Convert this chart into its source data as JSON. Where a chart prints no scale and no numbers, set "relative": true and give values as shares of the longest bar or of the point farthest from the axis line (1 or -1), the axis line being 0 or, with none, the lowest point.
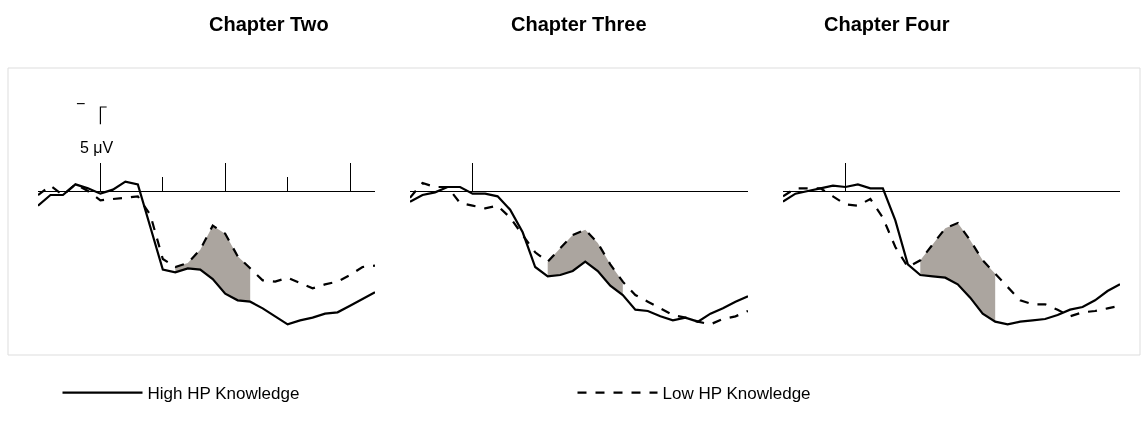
{
  "chart_data": [
    {
      "type": "line",
      "title": "Chapter Two",
      "relative": true,
      "legend": "bottom",
      "annotations": [
        "−",
        "5 μV"
      ],
      "categories": [
        null,
        null,
        null,
        null,
        null,
        null,
        null,
        null,
        null,
        null,
        null,
        null,
        null,
        null,
        null,
        null,
        null,
        null,
        null,
        null,
        null,
        null,
        null,
        null,
        null,
        null,
        null,
        null
      ],
      "series": [
        {
          "name": "High HP Knowledge",
          "color": "#000000",
          "line_style": "solid",
          "values": [
            -0.11,
            -0.03,
            -0.03,
            0.05,
            0.02,
            -0.02,
            0.01,
            0.07,
            0.05,
            -0.27,
            -0.59,
            -0.61,
            -0.58,
            -0.59,
            -0.66,
            -0.77,
            -0.82,
            -0.83,
            -0.88,
            -0.94,
            -1,
            -0.97,
            -0.95,
            -0.92,
            -0.91,
            -0.86,
            -0.81,
            -0.76
          ]
        },
        {
          "name": "Low HP Knowledge",
          "color": "#000000",
          "line_style": "dashed",
          "values": [
            -0.03,
            0.04,
            -0.03,
            0.05,
            0,
            -0.07,
            -0.06,
            -0.05,
            -0.04,
            -0.18,
            -0.51,
            -0.57,
            -0.54,
            -0.44,
            -0.26,
            -0.32,
            -0.49,
            -0.58,
            -0.67,
            -0.68,
            -0.65,
            -0.69,
            -0.73,
            -0.7,
            -0.68,
            -0.63,
            -0.57,
            -0.56
          ],
          "lower": [
            null,
            null,
            null,
            null,
            null,
            null,
            null,
            null,
            null,
            null,
            null,
            -0.61,
            -0.58,
            -0.59,
            -0.66,
            -0.77,
            -0.82,
            -0.83,
            null,
            null,
            null,
            null,
            null,
            null,
            null,
            null,
            null,
            null
          ],
          "upper": [
            null,
            null,
            null,
            null,
            null,
            null,
            null,
            null,
            null,
            null,
            null,
            -0.57,
            -0.54,
            -0.44,
            -0.26,
            -0.32,
            -0.49,
            -0.58,
            null,
            null,
            null,
            null,
            null,
            null,
            null,
            null,
            null,
            null
          ]
        }
      ]
    },
    {
      "type": "line",
      "title": "Chapter Three",
      "relative": true,
      "categories": [
        null,
        null,
        null,
        null,
        null,
        null,
        null,
        null,
        null,
        null,
        null,
        null,
        null,
        null,
        null,
        null,
        null,
        null,
        null,
        null,
        null,
        null,
        null,
        null,
        null,
        null,
        null,
        null
      ],
      "series": [
        {
          "color": "#000000",
          "line_style": "solid",
          "values": [
            -0.08,
            -0.03,
            -0.01,
            0.03,
            0.03,
            -0.02,
            -0.02,
            -0.04,
            -0.14,
            -0.31,
            -0.57,
            -0.64,
            -0.63,
            -0.6,
            -0.53,
            -0.6,
            -0.71,
            -0.78,
            -0.89,
            -0.9,
            -0.94,
            -0.97,
            -0.95,
            -0.98,
            -0.92,
            -0.88,
            -0.83,
            -0.79
          ]
        },
        {
          "color": "#000000",
          "line_style": "dashed",
          "values": [
            -0.05,
            0.06,
            0.03,
            0.03,
            -0.09,
            -0.11,
            -0.13,
            -0.11,
            -0.2,
            -0.33,
            -0.46,
            -0.53,
            -0.43,
            -0.33,
            -0.29,
            -0.39,
            -0.55,
            -0.68,
            -0.78,
            -0.83,
            -0.88,
            -0.93,
            -0.95,
            -0.98,
            -1,
            -0.96,
            -0.94,
            -0.9
          ],
          "lower": [
            null,
            null,
            null,
            null,
            null,
            null,
            null,
            null,
            null,
            null,
            null,
            -0.64,
            -0.63,
            -0.6,
            -0.53,
            -0.6,
            -0.71,
            -0.78,
            null,
            null,
            null,
            null,
            null,
            null,
            null,
            null,
            null,
            null
          ],
          "upper": [
            null,
            null,
            null,
            null,
            null,
            null,
            null,
            null,
            null,
            null,
            null,
            -0.53,
            -0.43,
            -0.33,
            -0.29,
            -0.39,
            -0.55,
            -0.68,
            null,
            null,
            null,
            null,
            null,
            null,
            null,
            null,
            null,
            null
          ]
        }
      ]
    },
    {
      "type": "line",
      "title": "Chapter Four",
      "relative": true,
      "categories": [
        null,
        null,
        null,
        null,
        null,
        null,
        null,
        null,
        null,
        null,
        null,
        null,
        null,
        null,
        null,
        null,
        null,
        null,
        null,
        null,
        null,
        null,
        null,
        null,
        null,
        null,
        null,
        null
      ],
      "series": [
        {
          "color": "#000000",
          "line_style": "solid",
          "values": [
            -0.08,
            -0.02,
            0,
            0.02,
            0.04,
            0.03,
            0.05,
            0.02,
            0.02,
            -0.22,
            -0.55,
            -0.63,
            -0.64,
            -0.65,
            -0.7,
            -0.8,
            -0.92,
            -0.98,
            -1,
            -0.98,
            -0.97,
            -0.96,
            -0.93,
            -0.89,
            -0.87,
            -0.82,
            -0.75,
            -0.7
          ]
        },
        {
          "color": "#000000",
          "line_style": "dashed",
          "values": [
            -0.04,
            0.02,
            0.02,
            0.02,
            -0.04,
            -0.1,
            -0.11,
            -0.06,
            -0.2,
            -0.42,
            -0.57,
            -0.52,
            -0.4,
            -0.28,
            -0.24,
            -0.37,
            -0.52,
            -0.62,
            -0.72,
            -0.82,
            -0.85,
            -0.85,
            -0.89,
            -0.94,
            -0.91,
            -0.9,
            -0.88,
            -0.86
          ],
          "lower": [
            null,
            null,
            null,
            null,
            null,
            null,
            null,
            null,
            null,
            null,
            null,
            -0.63,
            -0.64,
            -0.65,
            -0.7,
            -0.8,
            -0.92,
            -0.98,
            null,
            null,
            null,
            null,
            null,
            null,
            null,
            null,
            null,
            null
          ],
          "upper": [
            null,
            null,
            null,
            null,
            null,
            null,
            null,
            null,
            null,
            null,
            null,
            -0.52,
            -0.4,
            -0.28,
            -0.24,
            -0.37,
            -0.52,
            -0.62,
            null,
            null,
            null,
            null,
            null,
            null,
            null,
            null,
            null,
            null
          ]
        }
      ]
    }
  ]
}
